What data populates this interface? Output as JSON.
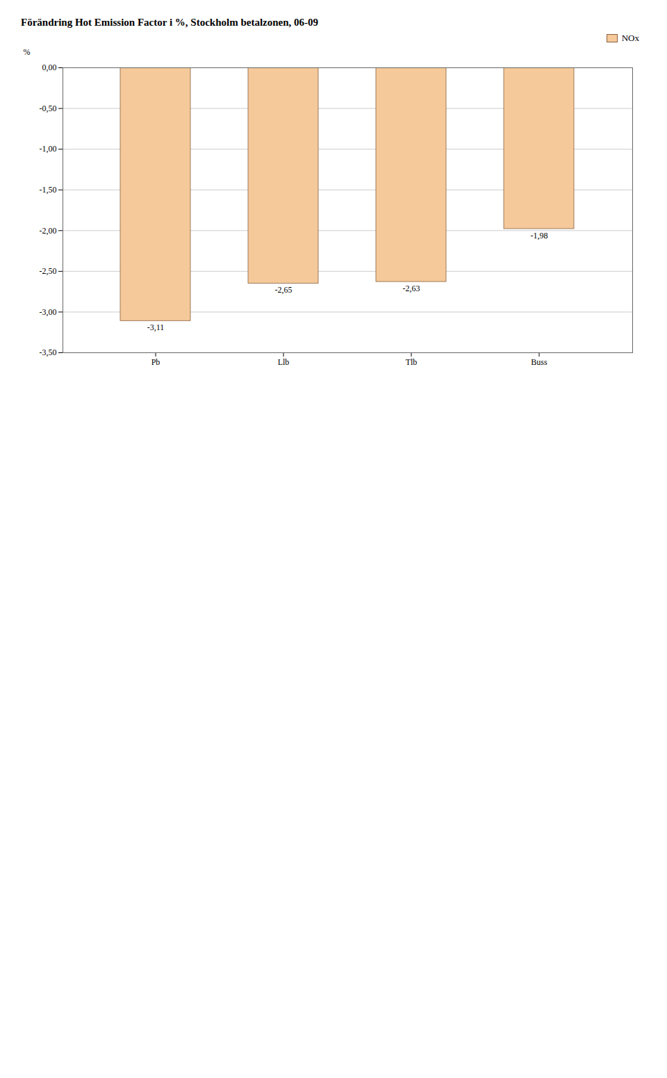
{
  "chart_data": {
    "type": "bar",
    "title": "Förändring Hot Emission Factor i %, Stockholm betalzonen, 06-09",
    "ylabel": "%",
    "categories": [
      "Pb",
      "Llb",
      "Tlb",
      "Buss"
    ],
    "series": [
      {
        "name": "NOx",
        "color": "#F5C99A",
        "values": [
          -3.11,
          -2.65,
          -2.63,
          -1.98
        ]
      }
    ],
    "value_labels": [
      "-3,11",
      "-2,65",
      "-2,63",
      "-1,98"
    ],
    "data_labels": true,
    "ylim": [
      -3.5,
      0.0
    ],
    "yticks": [
      {
        "value": 0.0,
        "label": "0,00"
      },
      {
        "value": -0.5,
        "label": "-0,50"
      },
      {
        "value": -1.0,
        "label": "-1,00"
      },
      {
        "value": -1.5,
        "label": "-1,50"
      },
      {
        "value": -2.0,
        "label": "-2,00"
      },
      {
        "value": -2.5,
        "label": "-2,50"
      },
      {
        "value": -3.0,
        "label": "-3,00"
      },
      {
        "value": -3.5,
        "label": "-3,50"
      }
    ],
    "grid": true,
    "legend": "upper right"
  }
}
